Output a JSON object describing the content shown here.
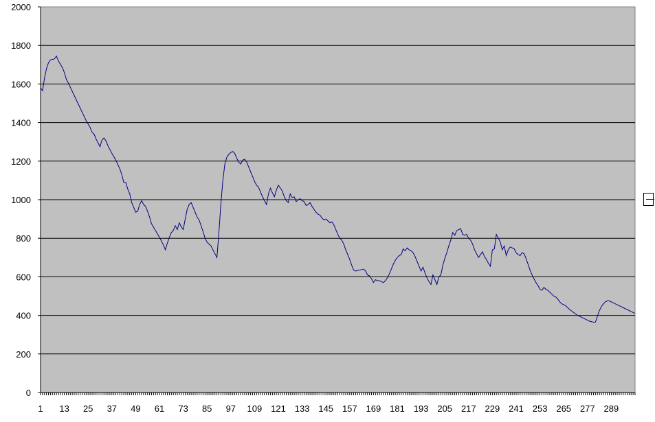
{
  "chart_data": {
    "type": "line",
    "title": "",
    "xlabel": "",
    "ylabel": "",
    "ylim": [
      0,
      2000
    ],
    "y_ticks": [
      "0",
      "200",
      "400",
      "600",
      "800",
      "1000",
      "1200",
      "1400",
      "1600",
      "1800",
      "2000"
    ],
    "x_ticks": [
      "1",
      "13",
      "25",
      "37",
      "49",
      "61",
      "73",
      "85",
      "97",
      "109",
      "121",
      "133",
      "145",
      "157",
      "169",
      "181",
      "193",
      "205",
      "217",
      "229",
      "241",
      "253",
      "265",
      "277",
      "289"
    ],
    "x_range": [
      1,
      296
    ],
    "grid": "horizontal",
    "plot_background": "#C0C0C0",
    "line_color": "#000080",
    "legend": {
      "placement": "right",
      "label": ""
    },
    "series": [
      {
        "points": [
          [
            1,
            1580
          ],
          [
            2,
            1565
          ],
          [
            3,
            1630
          ],
          [
            4,
            1680
          ],
          [
            5,
            1710
          ],
          [
            6,
            1725
          ],
          [
            8,
            1730
          ],
          [
            9,
            1745
          ],
          [
            10,
            1720
          ],
          [
            12,
            1685
          ],
          [
            13,
            1660
          ],
          [
            14,
            1625
          ],
          [
            15,
            1605
          ],
          [
            18,
            1540
          ],
          [
            21,
            1475
          ],
          [
            24,
            1410
          ],
          [
            26,
            1375
          ],
          [
            27,
            1350
          ],
          [
            28,
            1340
          ],
          [
            29,
            1315
          ],
          [
            30,
            1295
          ],
          [
            31,
            1275
          ],
          [
            32,
            1310
          ],
          [
            33,
            1320
          ],
          [
            34,
            1305
          ],
          [
            35,
            1280
          ],
          [
            37,
            1240
          ],
          [
            39,
            1205
          ],
          [
            41,
            1160
          ],
          [
            42,
            1130
          ],
          [
            43,
            1090
          ],
          [
            44,
            1090
          ],
          [
            45,
            1055
          ],
          [
            46,
            1030
          ],
          [
            47,
            985
          ],
          [
            48,
            960
          ],
          [
            49,
            935
          ],
          [
            50,
            940
          ],
          [
            51,
            975
          ],
          [
            52,
            995
          ],
          [
            53,
            975
          ],
          [
            54,
            965
          ],
          [
            55,
            940
          ],
          [
            56,
            910
          ],
          [
            57,
            875
          ],
          [
            59,
            840
          ],
          [
            61,
            805
          ],
          [
            63,
            765
          ],
          [
            64,
            740
          ],
          [
            65,
            775
          ],
          [
            66,
            805
          ],
          [
            67,
            830
          ],
          [
            68,
            840
          ],
          [
            69,
            865
          ],
          [
            70,
            845
          ],
          [
            71,
            880
          ],
          [
            72,
            860
          ],
          [
            73,
            845
          ],
          [
            74,
            900
          ],
          [
            75,
            950
          ],
          [
            76,
            975
          ],
          [
            77,
            985
          ],
          [
            78,
            960
          ],
          [
            79,
            935
          ],
          [
            80,
            910
          ],
          [
            81,
            895
          ],
          [
            82,
            865
          ],
          [
            83,
            835
          ],
          [
            84,
            800
          ],
          [
            85,
            780
          ],
          [
            86,
            770
          ],
          [
            87,
            760
          ],
          [
            88,
            740
          ],
          [
            89,
            720
          ],
          [
            90,
            700
          ],
          [
            91,
            830
          ],
          [
            92,
            980
          ],
          [
            93,
            1100
          ],
          [
            94,
            1185
          ],
          [
            95,
            1220
          ],
          [
            96,
            1235
          ],
          [
            97,
            1245
          ],
          [
            98,
            1250
          ],
          [
            99,
            1240
          ],
          [
            100,
            1215
          ],
          [
            101,
            1195
          ],
          [
            102,
            1185
          ],
          [
            103,
            1205
          ],
          [
            104,
            1210
          ],
          [
            105,
            1195
          ],
          [
            106,
            1170
          ],
          [
            107,
            1145
          ],
          [
            108,
            1120
          ],
          [
            109,
            1095
          ],
          [
            110,
            1075
          ],
          [
            111,
            1065
          ],
          [
            112,
            1040
          ],
          [
            113,
            1015
          ],
          [
            114,
            995
          ],
          [
            115,
            975
          ],
          [
            116,
            1030
          ],
          [
            117,
            1060
          ],
          [
            118,
            1035
          ],
          [
            119,
            1015
          ],
          [
            120,
            1050
          ],
          [
            121,
            1075
          ],
          [
            122,
            1060
          ],
          [
            123,
            1045
          ],
          [
            124,
            1015
          ],
          [
            125,
            995
          ],
          [
            126,
            985
          ],
          [
            127,
            1030
          ],
          [
            128,
            1010
          ],
          [
            129,
            1015
          ],
          [
            130,
            990
          ],
          [
            131,
            1000
          ],
          [
            132,
            1005
          ],
          [
            133,
            995
          ],
          [
            134,
            990
          ],
          [
            135,
            970
          ],
          [
            136,
            975
          ],
          [
            137,
            985
          ],
          [
            138,
            965
          ],
          [
            139,
            950
          ],
          [
            140,
            935
          ],
          [
            141,
            925
          ],
          [
            142,
            920
          ],
          [
            143,
            905
          ],
          [
            144,
            895
          ],
          [
            145,
            900
          ],
          [
            146,
            890
          ],
          [
            147,
            880
          ],
          [
            148,
            885
          ],
          [
            149,
            870
          ],
          [
            150,
            845
          ],
          [
            151,
            820
          ],
          [
            152,
            800
          ],
          [
            153,
            790
          ],
          [
            154,
            770
          ],
          [
            155,
            740
          ],
          [
            156,
            715
          ],
          [
            157,
            690
          ],
          [
            158,
            660
          ],
          [
            159,
            635
          ],
          [
            160,
            630
          ],
          [
            162,
            635
          ],
          [
            164,
            640
          ],
          [
            165,
            630
          ],
          [
            166,
            610
          ],
          [
            167,
            605
          ],
          [
            168,
            590
          ],
          [
            169,
            570
          ],
          [
            170,
            585
          ],
          [
            171,
            580
          ],
          [
            172,
            580
          ],
          [
            173,
            575
          ],
          [
            174,
            570
          ],
          [
            175,
            580
          ],
          [
            176,
            595
          ],
          [
            177,
            615
          ],
          [
            178,
            640
          ],
          [
            179,
            665
          ],
          [
            180,
            685
          ],
          [
            181,
            700
          ],
          [
            182,
            710
          ],
          [
            183,
            715
          ],
          [
            184,
            745
          ],
          [
            185,
            735
          ],
          [
            186,
            750
          ],
          [
            187,
            740
          ],
          [
            188,
            735
          ],
          [
            189,
            725
          ],
          [
            190,
            705
          ],
          [
            191,
            680
          ],
          [
            192,
            655
          ],
          [
            193,
            630
          ],
          [
            194,
            650
          ],
          [
            195,
            620
          ],
          [
            196,
            595
          ],
          [
            197,
            575
          ],
          [
            198,
            560
          ],
          [
            199,
            610
          ],
          [
            200,
            585
          ],
          [
            201,
            560
          ],
          [
            202,
            600
          ],
          [
            203,
            610
          ],
          [
            204,
            660
          ],
          [
            205,
            695
          ],
          [
            206,
            725
          ],
          [
            207,
            760
          ],
          [
            208,
            790
          ],
          [
            209,
            830
          ],
          [
            210,
            815
          ],
          [
            211,
            840
          ],
          [
            212,
            845
          ],
          [
            213,
            850
          ],
          [
            214,
            820
          ],
          [
            215,
            815
          ],
          [
            216,
            820
          ],
          [
            217,
            800
          ],
          [
            218,
            790
          ],
          [
            219,
            770
          ],
          [
            220,
            740
          ],
          [
            221,
            720
          ],
          [
            222,
            700
          ],
          [
            223,
            715
          ],
          [
            224,
            730
          ],
          [
            225,
            705
          ],
          [
            226,
            690
          ],
          [
            227,
            670
          ],
          [
            228,
            655
          ],
          [
            229,
            740
          ],
          [
            230,
            745
          ],
          [
            231,
            820
          ],
          [
            232,
            800
          ],
          [
            233,
            780
          ],
          [
            234,
            740
          ],
          [
            235,
            760
          ],
          [
            236,
            710
          ],
          [
            237,
            740
          ],
          [
            238,
            755
          ],
          [
            239,
            750
          ],
          [
            240,
            745
          ],
          [
            241,
            725
          ],
          [
            242,
            715
          ],
          [
            243,
            710
          ],
          [
            244,
            725
          ],
          [
            245,
            720
          ],
          [
            246,
            695
          ],
          [
            247,
            665
          ],
          [
            248,
            635
          ],
          [
            249,
            610
          ],
          [
            250,
            590
          ],
          [
            251,
            570
          ],
          [
            252,
            555
          ],
          [
            253,
            535
          ],
          [
            254,
            530
          ],
          [
            255,
            545
          ],
          [
            256,
            535
          ],
          [
            257,
            530
          ],
          [
            258,
            520
          ],
          [
            259,
            510
          ],
          [
            260,
            500
          ],
          [
            261,
            495
          ],
          [
            262,
            485
          ],
          [
            263,
            470
          ],
          [
            264,
            460
          ],
          [
            266,
            450
          ],
          [
            268,
            430
          ],
          [
            270,
            415
          ],
          [
            272,
            400
          ],
          [
            275,
            385
          ],
          [
            278,
            370
          ],
          [
            280,
            365
          ],
          [
            281,
            365
          ],
          [
            282,
            395
          ],
          [
            283,
            425
          ],
          [
            284,
            445
          ],
          [
            285,
            460
          ],
          [
            286,
            470
          ],
          [
            287,
            475
          ],
          [
            288,
            475
          ],
          [
            290,
            465
          ],
          [
            293,
            450
          ],
          [
            296,
            435
          ],
          [
            299,
            420
          ],
          [
            301,
            410
          ]
        ]
      }
    ]
  }
}
